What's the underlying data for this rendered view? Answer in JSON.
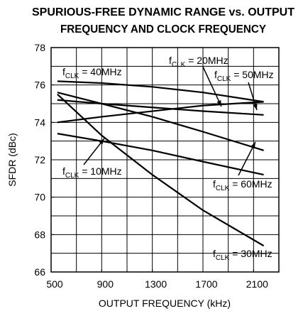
{
  "chart_data": {
    "type": "line",
    "title": [
      "SPURIOUS-FREE DYNAMIC RANGE vs. OUTPUT",
      "FREQUENCY AND CLOCK FREQUENCY"
    ],
    "x_label": "OUTPUT FREQUENCY (kHz)",
    "y_label": "SFDR (dBc)",
    "x": [
      550,
      900,
      1300,
      1700,
      2180
    ],
    "series": [
      {
        "name": "fCLK = 40MHz",
        "color": "#000000",
        "values": [
          76.2,
          76.1,
          75.9,
          75.6,
          75.1
        ]
      },
      {
        "name": "fCLK = 20MHz",
        "color": "#000000",
        "values": [
          75.2,
          75.0,
          74.8,
          74.6,
          74.4
        ]
      },
      {
        "name": "fCLK = 50MHz",
        "color": "#000000",
        "values": [
          74.0,
          74.3,
          74.6,
          74.9,
          75.1
        ]
      },
      {
        "name": "fCLK = 10MHz",
        "color": "#000000",
        "values": [
          73.4,
          73.0,
          72.5,
          71.9,
          71.2
        ]
      },
      {
        "name": "fCLK = 60MHz",
        "color": "#000000",
        "values": [
          75.6,
          75.0,
          74.3,
          73.5,
          72.5
        ]
      },
      {
        "name": "fCLK = 30MHz",
        "color": "#000000",
        "values": [
          75.5,
          73.3,
          71.2,
          69.3,
          67.4
        ]
      }
    ],
    "xlim": [
      500,
      2300
    ],
    "xticks": [
      500,
      900,
      1300,
      1700,
      2100
    ],
    "x_grid": [
      700,
      900,
      1100,
      1300,
      1500,
      1700,
      1900,
      2100
    ],
    "ylim": [
      66,
      78
    ],
    "yticks": [
      66,
      68,
      70,
      72,
      74,
      76,
      78
    ],
    "y_grid": [
      67,
      68,
      69,
      70,
      71,
      72,
      73,
      74,
      75,
      76,
      77
    ],
    "grid": true
  }
}
